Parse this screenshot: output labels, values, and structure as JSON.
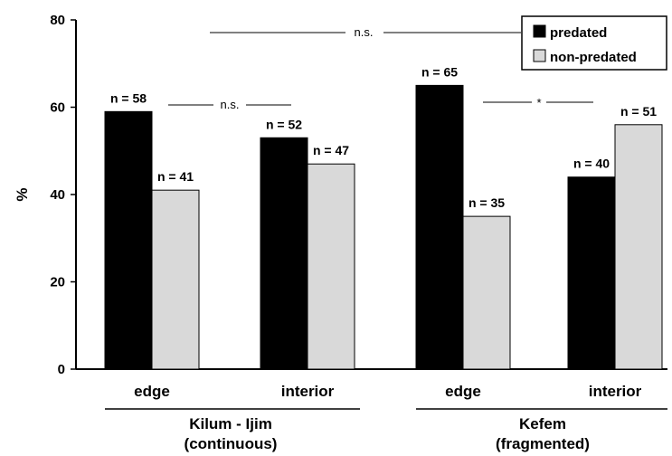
{
  "chart_data": {
    "type": "bar",
    "ylabel": "%",
    "ylim": [
      0,
      80
    ],
    "yticks": [
      "0",
      "20",
      "40",
      "60",
      "80"
    ],
    "grid": false,
    "legend_position": "top-right",
    "series": [
      {
        "name": "predated",
        "color": "#000000"
      },
      {
        "name": "non-predated",
        "color": "#d9d9d9"
      }
    ],
    "categories": [
      "edge",
      "interior",
      "edge",
      "interior"
    ],
    "groups": [
      {
        "label_line1": "Kilum - Ijim",
        "label_line2": "(continuous)"
      },
      {
        "label_line1": "Kefem",
        "label_line2": "(fragmented)"
      }
    ],
    "values": [
      {
        "predated": 59,
        "non_predated": 41
      },
      {
        "predated": 53,
        "non_predated": 47
      },
      {
        "predated": 65,
        "non_predated": 35
      },
      {
        "predated": 44,
        "non_predated": 56
      }
    ],
    "sample_labels": [
      {
        "predated": "n = 58",
        "non_predated": "n = 41"
      },
      {
        "predated": "n = 52",
        "non_predated": "n = 47"
      },
      {
        "predated": "n = 65",
        "non_predated": "n = 35"
      },
      {
        "predated": "n = 40",
        "non_predated": "n = 51"
      }
    ],
    "annotations": [
      {
        "text": "n.s.",
        "between": "Kilum - Ijim edge vs interior"
      },
      {
        "text": "*",
        "between": "Kefem edge vs interior"
      },
      {
        "text": "n.s.",
        "between": "Kilum - Ijim vs Kefem"
      }
    ]
  }
}
